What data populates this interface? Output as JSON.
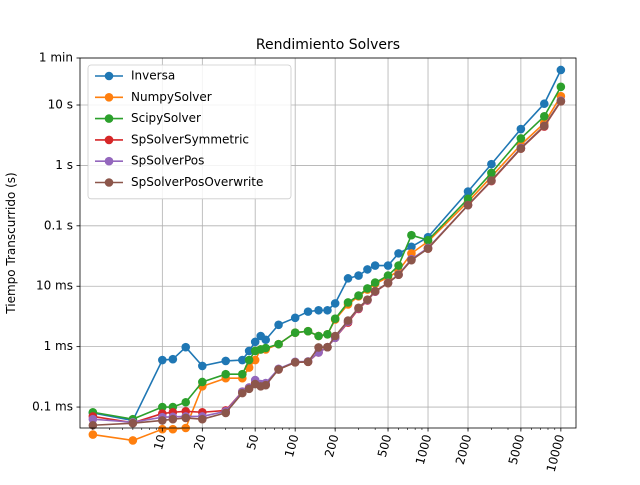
{
  "chart_data": {
    "type": "line",
    "title": "Rendimiento Solvers",
    "xlabel": "",
    "ylabel": "Tiempo Transcurrido (s)",
    "xscale": "log",
    "yscale": "log",
    "xlim": [
      2.4,
      13000
    ],
    "ylim": [
      4.5e-05,
      60
    ],
    "grid": true,
    "legend_position": "top-left",
    "x_ticks": [
      {
        "value": 10,
        "label": "10"
      },
      {
        "value": 20,
        "label": "20"
      },
      {
        "value": 50,
        "label": "50"
      },
      {
        "value": 100,
        "label": "100"
      },
      {
        "value": 200,
        "label": "200"
      },
      {
        "value": 500,
        "label": "500"
      },
      {
        "value": 1000,
        "label": "1000"
      },
      {
        "value": 2000,
        "label": "2000"
      },
      {
        "value": 5000,
        "label": "5000"
      },
      {
        "value": 10000,
        "label": "10000"
      }
    ],
    "y_ticks": [
      {
        "value": 0.0001,
        "label": "0.1 ms"
      },
      {
        "value": 0.001,
        "label": "1 ms"
      },
      {
        "value": 0.01,
        "label": "10 ms"
      },
      {
        "value": 0.1,
        "label": "0.1 s"
      },
      {
        "value": 1,
        "label": "1 s"
      },
      {
        "value": 10,
        "label": "10 s"
      },
      {
        "value": 60,
        "label": "1 min"
      }
    ],
    "series": [
      {
        "name": "Inversa",
        "color": "#1f77b4",
        "x": [
          3,
          6,
          10,
          12,
          15,
          20,
          30,
          40,
          45,
          50,
          55,
          60,
          75,
          100,
          125,
          150,
          175,
          200,
          250,
          300,
          350,
          400,
          500,
          600,
          750,
          1000,
          2000,
          3000,
          5000,
          7500,
          10000
        ],
        "y": [
          8e-05,
          6e-05,
          0.0006,
          0.00062,
          0.00098,
          0.00048,
          0.00058,
          0.0006,
          0.00085,
          0.0012,
          0.0015,
          0.0013,
          0.0023,
          0.003,
          0.0038,
          0.004,
          0.004,
          0.0052,
          0.0135,
          0.015,
          0.019,
          0.022,
          0.022,
          0.035,
          0.045,
          0.065,
          0.37,
          1.05,
          4.0,
          10.5,
          38.0
        ]
      },
      {
        "name": "NumpySolver",
        "color": "#ff7f0e",
        "x": [
          3,
          6,
          10,
          12,
          15,
          20,
          30,
          40,
          45,
          50,
          55,
          60,
          75,
          100,
          125,
          150,
          175,
          200,
          250,
          300,
          350,
          400,
          500,
          600,
          750,
          1000,
          2000,
          3000,
          5000,
          7500,
          10000
        ],
        "y": [
          3.5e-05,
          2.8e-05,
          4.3e-05,
          4.3e-05,
          4.5e-05,
          0.00022,
          0.0003,
          0.0003,
          0.00045,
          0.0006,
          0.0009,
          0.0009,
          0.0011,
          0.0017,
          0.0018,
          0.0015,
          0.0016,
          0.0028,
          0.005,
          0.0068,
          0.0088,
          0.011,
          0.014,
          0.018,
          0.035,
          0.055,
          0.25,
          0.65,
          2.2,
          5.0,
          14.0
        ]
      },
      {
        "name": "ScipySolver",
        "color": "#2ca02c",
        "x": [
          3,
          6,
          10,
          12,
          15,
          20,
          30,
          40,
          45,
          50,
          55,
          60,
          75,
          100,
          125,
          150,
          175,
          200,
          250,
          300,
          350,
          400,
          500,
          600,
          750,
          1000,
          2000,
          3000,
          5000,
          7500,
          10000
        ],
        "y": [
          8.2e-05,
          6.3e-05,
          0.0001,
          0.0001,
          0.00012,
          0.00026,
          0.00035,
          0.00035,
          0.0006,
          0.00085,
          0.0009,
          0.00095,
          0.0011,
          0.0017,
          0.0018,
          0.0015,
          0.0016,
          0.0029,
          0.0054,
          0.007,
          0.0092,
          0.0115,
          0.015,
          0.022,
          0.07,
          0.058,
          0.28,
          0.75,
          2.8,
          6.5,
          20.0
        ]
      },
      {
        "name": "SpSolverSymmetric",
        "color": "#d62728",
        "x": [
          3,
          6,
          10,
          12,
          15,
          20,
          30,
          40,
          45,
          50,
          55,
          60,
          75,
          100,
          125,
          150,
          175,
          200,
          250,
          300,
          350,
          400,
          500,
          600,
          750,
          1000,
          2000,
          3000,
          5000,
          7500,
          10000
        ],
        "y": [
          7e-05,
          5.5e-05,
          7.8e-05,
          8.2e-05,
          8.5e-05,
          8.2e-05,
          8.8e-05,
          0.00018,
          0.00021,
          0.00025,
          0.00023,
          0.00024,
          0.00042,
          0.00055,
          0.00056,
          0.0008,
          0.00098,
          0.0014,
          0.0025,
          0.0042,
          0.0058,
          0.0081,
          0.0113,
          0.0155,
          0.028,
          0.042,
          0.22,
          0.55,
          1.9,
          4.4,
          11.5
        ]
      },
      {
        "name": "SpSolverPos",
        "color": "#9467bd",
        "x": [
          3,
          6,
          10,
          12,
          15,
          20,
          30,
          40,
          45,
          50,
          55,
          60,
          75,
          100,
          125,
          150,
          175,
          200,
          250,
          300,
          350,
          400,
          500,
          600,
          750,
          1000,
          2000,
          3000,
          5000,
          7500,
          10000
        ],
        "y": [
          6.3e-05,
          5.6e-05,
          6.8e-05,
          6.9e-05,
          7e-05,
          7e-05,
          8.5e-05,
          0.00018,
          0.00021,
          0.00028,
          0.00024,
          0.00025,
          0.00043,
          0.00056,
          0.00057,
          0.0008,
          0.00098,
          0.0014,
          0.0026,
          0.0043,
          0.0059,
          0.0082,
          0.0114,
          0.0156,
          0.028,
          0.043,
          0.22,
          0.56,
          1.95,
          4.5,
          11.8
        ]
      },
      {
        "name": "SpSolverPosOverwrite",
        "color": "#8c564b",
        "x": [
          3,
          6,
          10,
          12,
          15,
          20,
          30,
          40,
          45,
          50,
          55,
          60,
          75,
          100,
          125,
          150,
          175,
          200,
          250,
          300,
          350,
          400,
          500,
          600,
          750,
          1000,
          2000,
          3000,
          5000,
          7500,
          10000
        ],
        "y": [
          5e-05,
          5.4e-05,
          6e-05,
          6.3e-05,
          6.6e-05,
          6.3e-05,
          8e-05,
          0.00017,
          0.0002,
          0.00024,
          0.00022,
          0.00023,
          0.00042,
          0.00055,
          0.00056,
          0.00097,
          0.00098,
          0.0015,
          0.0027,
          0.0044,
          0.006,
          0.0083,
          0.0113,
          0.0155,
          0.027,
          0.042,
          0.22,
          0.56,
          1.9,
          4.5,
          11.5
        ]
      }
    ]
  }
}
